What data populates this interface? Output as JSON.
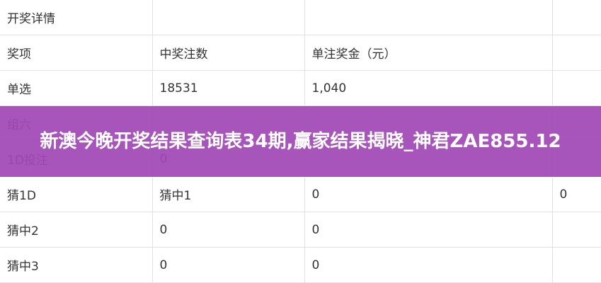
{
  "table": {
    "rows": [
      [
        "开奖详情"
      ],
      [
        "奖项",
        "中奖注数",
        "单注奖金（元）"
      ],
      [
        "单选",
        "18531",
        "1,040"
      ],
      [
        "组六"
      ],
      [
        "1D投注",
        "0"
      ],
      [
        "猜1D",
        "猜中1",
        "0",
        "0"
      ],
      [
        "猜中2",
        "0",
        "0"
      ],
      [
        "猜中3",
        "0",
        "0"
      ]
    ]
  },
  "banner": {
    "title": "新澳今晚开奖结果查询表34期,赢家结果揭晓_神君ZAE855.12"
  }
}
